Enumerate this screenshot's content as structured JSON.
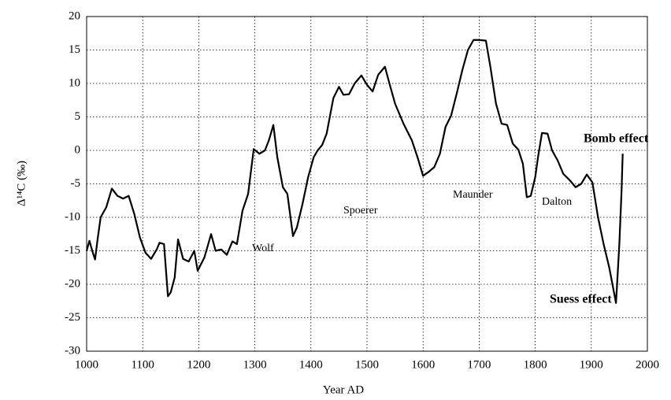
{
  "chart_data": {
    "type": "line",
    "xlabel": "Year AD",
    "ylabel": "Δ¹⁴C (‰)",
    "annotations": [
      "Wolf",
      "Spoerer",
      "Maunder",
      "Dalton",
      "Bomb effect",
      "Suess effect"
    ],
    "xlim": [
      1000,
      2000
    ],
    "xticks": [
      1000,
      1100,
      1200,
      1300,
      1400,
      1500,
      1600,
      1700,
      1800,
      1900,
      2000
    ],
    "ylim": [
      -30,
      20
    ],
    "yticks": [
      -30,
      -25,
      -20,
      -15,
      -10,
      -5,
      0,
      5,
      10,
      15,
      20
    ],
    "grid": true,
    "series": [
      {
        "color": "#000000",
        "x": [
          1000,
          1005,
          1010,
          1015,
          1020,
          1025,
          1035,
          1045,
          1055,
          1065,
          1075,
          1085,
          1095,
          1105,
          1115,
          1125,
          1130,
          1138,
          1145,
          1150,
          1157,
          1163,
          1172,
          1182,
          1192,
          1198,
          1210,
          1222,
          1230,
          1240,
          1250,
          1260,
          1268,
          1278,
          1288,
          1298,
          1308,
          1318,
          1325,
          1333,
          1340,
          1350,
          1358,
          1368,
          1375,
          1385,
          1395,
          1405,
          1412,
          1420,
          1428,
          1440,
          1450,
          1458,
          1468,
          1478,
          1490,
          1500,
          1510,
          1520,
          1532,
          1540,
          1550,
          1565,
          1580,
          1590,
          1600,
          1610,
          1620,
          1630,
          1640,
          1650,
          1660,
          1670,
          1680,
          1690,
          1700,
          1712,
          1720,
          1730,
          1740,
          1750,
          1760,
          1770,
          1778,
          1785,
          1792,
          1800,
          1805,
          1812,
          1822,
          1830,
          1840,
          1850,
          1862,
          1872,
          1882,
          1892,
          1902,
          1912,
          1922,
          1932,
          1940,
          1944,
          1946,
          1950,
          1954,
          1956
        ],
        "values": [
          -15,
          -13.5,
          -15,
          -16.3,
          -13,
          -10,
          -8.5,
          -5.7,
          -6.8,
          -7.2,
          -6.8,
          -9.5,
          -13,
          -15.3,
          -16.2,
          -14.8,
          -13.8,
          -14,
          -21.8,
          -21.2,
          -19,
          -13.3,
          -16.2,
          -16.6,
          -15,
          -18,
          -16,
          -12.5,
          -15,
          -14.8,
          -15.6,
          -13.6,
          -14,
          -9,
          -6.5,
          0.2,
          -0.5,
          0,
          1.5,
          3.8,
          -1,
          -5.5,
          -6.5,
          -12.8,
          -11.5,
          -8,
          -4,
          -1,
          0,
          0.8,
          2.5,
          7.8,
          9.5,
          8.3,
          8.4,
          10,
          11.2,
          9.8,
          8.8,
          11.3,
          12.5,
          10,
          7,
          4,
          1.5,
          -1,
          -3.8,
          -3.2,
          -2.5,
          -0.5,
          3.5,
          5.2,
          8.5,
          12,
          15,
          16.5,
          16.5,
          16.4,
          12.5,
          7,
          4,
          3.8,
          1,
          0.1,
          -2,
          -7,
          -6.8,
          -4,
          -1,
          2.6,
          2.5,
          0,
          -1.5,
          -3.5,
          -4.5,
          -5.5,
          -5,
          -3.6,
          -4.8,
          -10,
          -14,
          -17.5,
          -21,
          -22.8,
          -20,
          -14,
          -6,
          -0.5
        ]
      }
    ]
  }
}
